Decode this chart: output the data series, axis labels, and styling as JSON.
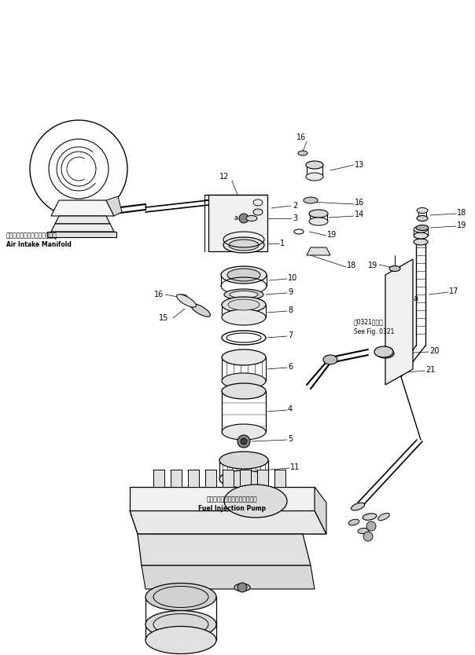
{
  "bg_color": "#ffffff",
  "line_color": "#000000",
  "fig_width": 6.04,
  "fig_height": 8.34,
  "dpi": 100,
  "labels": {
    "air_intake_jp": "エアーインテークマニホールド",
    "air_intake_en": "Air Intake Manifold",
    "fuel_pump_jp": "フェルインジェクションポンプ",
    "fuel_pump_en": "Fuel Injection Pump",
    "see_fig_jp": "図0321図参照",
    "see_fig_en": "See Fig. 0321"
  }
}
